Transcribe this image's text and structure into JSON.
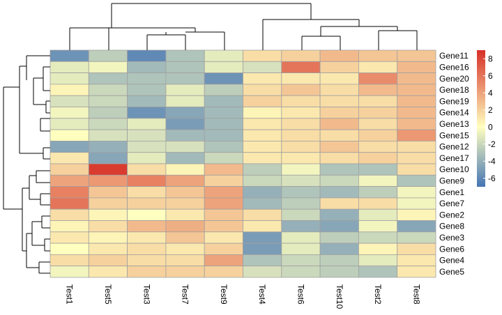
{
  "chart_data": {
    "type": "heatmap",
    "title": "",
    "columns": [
      "Test1",
      "Test5",
      "Test3",
      "Test7",
      "Test9",
      "Test4",
      "Test6",
      "Test10",
      "Test2",
      "Test8"
    ],
    "rows": [
      "Gene11",
      "Gene16",
      "Gene20",
      "Gene18",
      "Gene19",
      "Gene14",
      "Gene13",
      "Gene15",
      "Gene12",
      "Gene17",
      "Gene10",
      "Gene9",
      "Gene1",
      "Gene7",
      "Gene2",
      "Gene8",
      "Gene3",
      "Gene6",
      "Gene4",
      "Gene5"
    ],
    "values": [
      [
        -5.5,
        -2.5,
        -6.0,
        -3.0,
        -1.0,
        1.5,
        2.0,
        3.0,
        2.5,
        2.5
      ],
      [
        -1.0,
        -0.5,
        -3.5,
        -3.0,
        -1.0,
        -1.5,
        6.0,
        2.0,
        1.0,
        3.0
      ],
      [
        -1.0,
        -3.0,
        -3.0,
        -3.0,
        -5.5,
        1.0,
        1.0,
        1.0,
        5.0,
        3.0
      ],
      [
        0.5,
        -2.0,
        -3.0,
        -1.0,
        -2.5,
        1.5,
        2.5,
        1.5,
        3.0,
        3.0
      ],
      [
        -1.5,
        -2.0,
        -3.5,
        -1.0,
        -3.5,
        2.0,
        1.5,
        1.5,
        1.5,
        3.0
      ],
      [
        -0.5,
        -2.5,
        -5.5,
        -4.5,
        -3.5,
        0.5,
        1.0,
        2.0,
        2.0,
        3.0
      ],
      [
        -1.0,
        -2.0,
        -1.0,
        -5.0,
        -3.5,
        1.0,
        1.5,
        3.0,
        1.5,
        3.0
      ],
      [
        0.0,
        -1.5,
        -1.5,
        -3.5,
        -3.5,
        1.0,
        1.5,
        1.5,
        2.0,
        4.5
      ],
      [
        -4.5,
        -4.0,
        -1.5,
        -1.5,
        -3.0,
        1.0,
        1.5,
        2.5,
        1.5,
        1.5
      ],
      [
        1.0,
        -4.5,
        -1.0,
        -3.5,
        -2.0,
        1.0,
        1.0,
        1.5,
        2.0,
        1.5
      ],
      [
        2.0,
        8.5,
        1.5,
        0.5,
        3.0,
        -2.5,
        -0.5,
        -3.0,
        -3.0,
        1.5
      ],
      [
        4.0,
        4.5,
        5.5,
        4.0,
        2.0,
        -2.0,
        -1.5,
        -2.0,
        -0.5,
        -3.0
      ],
      [
        5.5,
        2.5,
        1.5,
        2.5,
        4.0,
        -4.0,
        -3.0,
        -3.5,
        -2.5,
        -0.5
      ],
      [
        6.0,
        2.0,
        2.0,
        2.0,
        4.0,
        -3.5,
        -2.5,
        1.5,
        1.5,
        -0.5
      ],
      [
        1.5,
        0.5,
        0.0,
        1.0,
        2.5,
        1.5,
        -2.0,
        -4.0,
        -1.0,
        0.5
      ],
      [
        0.5,
        1.5,
        3.0,
        3.5,
        2.5,
        1.0,
        -4.0,
        -4.5,
        -0.5,
        -4.5
      ],
      [
        1.0,
        0.5,
        1.0,
        2.5,
        1.0,
        -5.0,
        -1.0,
        -2.5,
        -2.0,
        -2.0
      ],
      [
        0.0,
        1.0,
        1.5,
        1.0,
        2.0,
        -5.0,
        -1.0,
        -4.0,
        0.5,
        1.5
      ],
      [
        1.5,
        2.0,
        1.5,
        1.5,
        4.0,
        -3.0,
        -2.0,
        -2.5,
        -1.0,
        1.0
      ],
      [
        -0.5,
        1.0,
        2.0,
        2.0,
        2.0,
        -1.5,
        -2.0,
        -2.5,
        -3.0,
        1.0
      ]
    ],
    "color_scale": {
      "range": [
        -7,
        9
      ],
      "ticks": [
        8,
        6,
        4,
        2,
        0,
        -2,
        -4,
        -6
      ],
      "low_color": "#4575b4",
      "mid_color": "#ffffbf",
      "high_color": "#d73027"
    },
    "legend_position": "right"
  }
}
